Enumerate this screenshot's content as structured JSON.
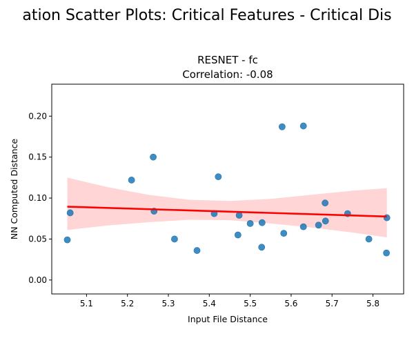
{
  "suptitle": "ation Scatter Plots: Critical Features - Critical Dis",
  "chart_data": {
    "type": "scatter",
    "title_line1": "RESNET - fc",
    "title_line2": "Correlation: -0.08",
    "xlabel": "Input File Distance",
    "ylabel": "NN Computed Distance",
    "xlim": [
      5.015,
      5.875
    ],
    "ylim": [
      -0.017,
      0.239
    ],
    "xticks": [
      "5.1",
      "5.2",
      "5.3",
      "5.4",
      "5.5",
      "5.6",
      "5.7",
      "5.8"
    ],
    "xtick_values": [
      5.1,
      5.2,
      5.3,
      5.4,
      5.5,
      5.6,
      5.7,
      5.8
    ],
    "yticks": [
      "0.00",
      "0.05",
      "0.10",
      "0.15",
      "0.20"
    ],
    "ytick_values": [
      0.0,
      0.05,
      0.1,
      0.15,
      0.2
    ],
    "points": [
      {
        "x": 5.053,
        "y": 0.049
      },
      {
        "x": 5.06,
        "y": 0.082
      },
      {
        "x": 5.21,
        "y": 0.122
      },
      {
        "x": 5.263,
        "y": 0.15
      },
      {
        "x": 5.265,
        "y": 0.084
      },
      {
        "x": 5.315,
        "y": 0.05
      },
      {
        "x": 5.37,
        "y": 0.036
      },
      {
        "x": 5.412,
        "y": 0.081
      },
      {
        "x": 5.422,
        "y": 0.126
      },
      {
        "x": 5.47,
        "y": 0.055
      },
      {
        "x": 5.473,
        "y": 0.079
      },
      {
        "x": 5.5,
        "y": 0.069
      },
      {
        "x": 5.528,
        "y": 0.04
      },
      {
        "x": 5.529,
        "y": 0.07
      },
      {
        "x": 5.578,
        "y": 0.187
      },
      {
        "x": 5.582,
        "y": 0.057
      },
      {
        "x": 5.63,
        "y": 0.188
      },
      {
        "x": 5.63,
        "y": 0.065
      },
      {
        "x": 5.667,
        "y": 0.067
      },
      {
        "x": 5.683,
        "y": 0.094
      },
      {
        "x": 5.684,
        "y": 0.072
      },
      {
        "x": 5.738,
        "y": 0.081
      },
      {
        "x": 5.79,
        "y": 0.05
      },
      {
        "x": 5.833,
        "y": 0.033
      },
      {
        "x": 5.834,
        "y": 0.076
      }
    ],
    "regression": {
      "x": [
        5.053,
        5.834
      ],
      "y": [
        0.0895,
        0.0775
      ]
    },
    "confidence_band": {
      "x": [
        5.053,
        5.15,
        5.25,
        5.35,
        5.45,
        5.55,
        5.65,
        5.75,
        5.834
      ],
      "upper": [
        0.125,
        0.1135,
        0.104,
        0.098,
        0.0965,
        0.099,
        0.104,
        0.109,
        0.112
      ],
      "lower": [
        0.061,
        0.0665,
        0.0705,
        0.0735,
        0.073,
        0.069,
        0.064,
        0.058,
        0.052
      ]
    },
    "point_color": "#1f77b4",
    "line_color": "#ff0000",
    "band_color": "#ffb3b3",
    "grid": false
  }
}
